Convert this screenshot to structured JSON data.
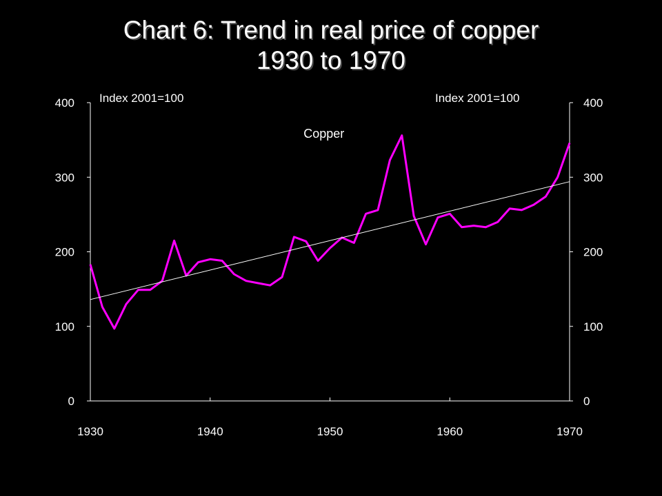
{
  "chart_data": {
    "type": "line",
    "title": [
      "Chart 6: Trend in real price of copper",
      "1930 to 1970"
    ],
    "left_axis_label": "Index 2001=100",
    "right_axis_label": "Index 2001=100",
    "xlim": [
      1930,
      1970
    ],
    "ylim": [
      0,
      400
    ],
    "x_ticks": [
      1930,
      1940,
      1950,
      1960,
      1970
    ],
    "y_ticks": [
      0,
      100,
      200,
      300,
      400
    ],
    "grid": false,
    "series": [
      {
        "name": "Copper",
        "color": "#ff00ff",
        "x": [
          1930,
          1931,
          1932,
          1933,
          1934,
          1935,
          1936,
          1937,
          1938,
          1939,
          1940,
          1941,
          1942,
          1943,
          1944,
          1945,
          1946,
          1947,
          1948,
          1949,
          1950,
          1951,
          1952,
          1953,
          1954,
          1955,
          1956,
          1957,
          1958,
          1959,
          1960,
          1961,
          1962,
          1963,
          1964,
          1965,
          1966,
          1967,
          1968,
          1969,
          1970
        ],
        "values": [
          183,
          126,
          97,
          130,
          149,
          149,
          161,
          215,
          168,
          186,
          190,
          188,
          170,
          161,
          158,
          155,
          166,
          220,
          214,
          188,
          205,
          219,
          212,
          251,
          256,
          323,
          356,
          248,
          210,
          246,
          251,
          233,
          235,
          233,
          240,
          258,
          256,
          263,
          274,
          300,
          346
        ]
      },
      {
        "name": "",
        "color": "#ffffff",
        "x": [
          1930,
          1970
        ],
        "values": [
          136,
          294
        ]
      }
    ],
    "annotations": [
      {
        "text": "Copper",
        "x": 1947.8,
        "y": 353
      }
    ]
  }
}
